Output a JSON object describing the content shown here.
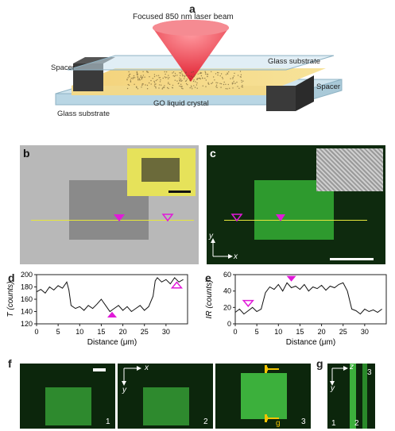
{
  "panels": {
    "a": {
      "label": "a",
      "laser": "Focused 850 nm laser beam",
      "top_glass": "Glass substrate",
      "bottom_glass": "Glass substrate",
      "spacer_left": "Spacer",
      "spacer_right": "Spacer",
      "lc": "GO liquid crystal"
    },
    "b": {
      "label": "b"
    },
    "c": {
      "label": "c",
      "axis_y": "y",
      "axis_x": "x"
    },
    "d": {
      "label": "d"
    },
    "e": {
      "label": "e"
    },
    "f": {
      "label": "f",
      "axis_x": "x",
      "axis_y": "y",
      "n1": "1",
      "n2": "2",
      "n3": "3",
      "g_mark": "g"
    },
    "g": {
      "label": "g",
      "axis_z": "z",
      "axis_y": "y",
      "n1": "1",
      "n2": "2",
      "n3": "3"
    }
  },
  "colors": {
    "magenta": "#e01ad8",
    "yellow_line": "#e6e63c",
    "green": "#22dd22",
    "gold": "#f2c400"
  },
  "chart_data": [
    {
      "type": "line",
      "panel": "d",
      "xlabel": "Distance (μm)",
      "ylabel": "T (counts)",
      "xlim": [
        0,
        35
      ],
      "ylim": [
        120,
        200
      ],
      "xticks": [
        "0",
        "5",
        "10",
        "15",
        "20",
        "25",
        "30"
      ],
      "yticks": [
        "120",
        "140",
        "160",
        "180",
        "200"
      ],
      "x": [
        0,
        1,
        2,
        3,
        4,
        5,
        6,
        7,
        7.5,
        8,
        9,
        10,
        11,
        12,
        13,
        14,
        15,
        16,
        17,
        18,
        19,
        20,
        21,
        22,
        23,
        24,
        25,
        26,
        27,
        27.5,
        28,
        29,
        30,
        31,
        32,
        33,
        34
      ],
      "y": [
        172,
        176,
        170,
        180,
        175,
        182,
        178,
        188,
        175,
        150,
        145,
        148,
        142,
        150,
        145,
        152,
        160,
        150,
        140,
        145,
        150,
        142,
        148,
        140,
        145,
        150,
        142,
        148,
        165,
        190,
        195,
        188,
        192,
        185,
        195,
        188,
        192
      ],
      "markers": [
        {
          "x": 17.5,
          "y": 135,
          "style": "filled",
          "direction": "up"
        },
        {
          "x": 32.5,
          "y": 183,
          "style": "open",
          "direction": "up"
        }
      ]
    },
    {
      "type": "line",
      "panel": "e",
      "xlabel": "Distance (μm)",
      "ylabel": "IR (counts)",
      "xlim": [
        0,
        35
      ],
      "ylim": [
        0,
        60
      ],
      "xticks": [
        "0",
        "5",
        "10",
        "15",
        "20",
        "25",
        "30"
      ],
      "yticks": [
        "0",
        "20",
        "40",
        "60"
      ],
      "x": [
        0,
        1,
        2,
        3,
        4,
        5,
        6,
        7,
        8,
        9,
        10,
        11,
        12,
        13,
        14,
        15,
        16,
        17,
        18,
        19,
        20,
        21,
        22,
        23,
        24,
        25,
        26,
        27,
        28,
        29,
        30,
        31,
        32,
        33,
        34
      ],
      "y": [
        14,
        18,
        12,
        16,
        20,
        15,
        18,
        38,
        45,
        42,
        48,
        40,
        50,
        44,
        46,
        42,
        48,
        40,
        45,
        43,
        47,
        41,
        46,
        44,
        48,
        50,
        40,
        18,
        16,
        12,
        18,
        15,
        17,
        14,
        18
      ],
      "markers": [
        {
          "x": 13,
          "y": 55,
          "style": "filled",
          "direction": "down"
        },
        {
          "x": 3,
          "y": 25,
          "style": "open",
          "direction": "down"
        }
      ]
    }
  ]
}
